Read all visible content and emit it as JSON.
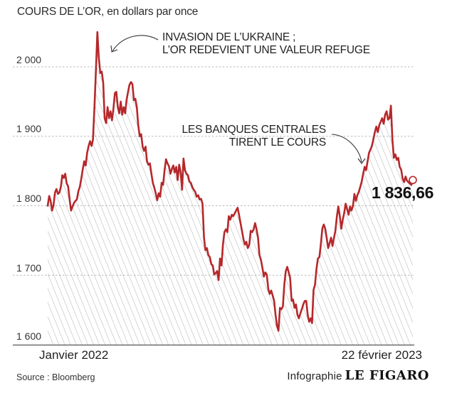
{
  "chart_data": {
    "type": "area",
    "title": "COURS DE L’OR, en dollars par once",
    "xlabel": "",
    "ylabel": "",
    "ylim": [
      1600,
      2050
    ],
    "y_ticks": [
      {
        "value": 2000,
        "label": "2 000"
      },
      {
        "value": 1900,
        "label": "1 900"
      },
      {
        "value": 1800,
        "label": "1 800"
      },
      {
        "value": 1700,
        "label": "1 700"
      },
      {
        "value": 1600,
        "label": "1 600"
      }
    ],
    "x_ticks": {
      "start": "Janvier 2022",
      "end": "22 février 2023"
    },
    "grid": true,
    "series": [
      {
        "name": "Cours de l’or",
        "color": "#b5282b",
        "values": [
          1800,
          1814,
          1807,
          1793,
          1801,
          1819,
          1824,
          1817,
          1819,
          1827,
          1844,
          1840,
          1846,
          1832,
          1828,
          1809,
          1793,
          1799,
          1804,
          1807,
          1809,
          1821,
          1827,
          1839,
          1852,
          1864,
          1858,
          1876,
          1886,
          1893,
          1886,
          1895,
          1942,
          1993,
          2050,
          2013,
          1991,
          1993,
          1977,
          1926,
          1919,
          1942,
          1926,
          1936,
          1923,
          1939,
          1962,
          1964,
          1942,
          1933,
          1950,
          1931,
          1942,
          1933,
          1952,
          1964,
          1974,
          1978,
          1975,
          1952,
          1954,
          1942,
          1916,
          1900,
          1903,
          1885,
          1879,
          1885,
          1864,
          1859,
          1861,
          1846,
          1833,
          1826,
          1818,
          1808,
          1818,
          1813,
          1833,
          1830,
          1851,
          1867,
          1861,
          1857,
          1846,
          1853,
          1858,
          1848,
          1856,
          1837,
          1859,
          1849,
          1823,
          1868,
          1851,
          1846,
          1844,
          1835,
          1833,
          1827,
          1823,
          1820,
          1813,
          1815,
          1809,
          1810,
          1803,
          1754,
          1736,
          1739,
          1729,
          1726,
          1716,
          1714,
          1701,
          1703,
          1706,
          1693,
          1724,
          1714,
          1744,
          1762,
          1766,
          1762,
          1785,
          1780,
          1787,
          1785,
          1789,
          1793,
          1797,
          1787,
          1775,
          1764,
          1752,
          1744,
          1748,
          1739,
          1744,
          1764,
          1762,
          1766,
          1775,
          1766,
          1754,
          1729,
          1722,
          1711,
          1698,
          1704,
          1701,
          1680,
          1673,
          1678,
          1671,
          1663,
          1643,
          1627,
          1620,
          1653,
          1651,
          1655,
          1686,
          1706,
          1712,
          1704,
          1696,
          1663,
          1665,
          1653,
          1658,
          1643,
          1638,
          1645,
          1651,
          1658,
          1663,
          1663,
          1643,
          1633,
          1638,
          1631,
          1679,
          1686,
          1709,
          1724,
          1726,
          1744,
          1767,
          1773,
          1767,
          1754,
          1739,
          1746,
          1754,
          1742,
          1754,
          1764,
          1785,
          1799,
          1785,
          1767,
          1780,
          1790,
          1803,
          1795,
          1787,
          1799,
          1793,
          1800,
          1817,
          1807,
          1815,
          1820,
          1827,
          1835,
          1846,
          1856,
          1851,
          1864,
          1876,
          1881,
          1886,
          1896,
          1906,
          1914,
          1906,
          1916,
          1921,
          1926,
          1918,
          1931,
          1936,
          1924,
          1926,
          1944,
          1895,
          1869,
          1874,
          1866,
          1869,
          1856,
          1852,
          1839,
          1834,
          1842,
          1836,
          1834,
          1832,
          1830,
          1837
        ]
      }
    ],
    "last_value_label": "1 836,66",
    "annotations": [
      {
        "text_lines": [
          "INVASION DE L’UKRAINE ;",
          "L’OR REDEVIENT UNE VALEUR REFUGE"
        ]
      },
      {
        "text_lines": [
          "LES BANQUES CENTRALES",
          "TIRENT LE COURS"
        ]
      }
    ]
  },
  "footer": {
    "source": "Source : Bloomberg",
    "credit_label": "Infographie",
    "credit_brand": "LE FIGARO"
  },
  "colors": {
    "line": "#b5282b",
    "grid": "#b8b8b8",
    "hatch": "#9a9a9a",
    "axis": "#555555"
  }
}
